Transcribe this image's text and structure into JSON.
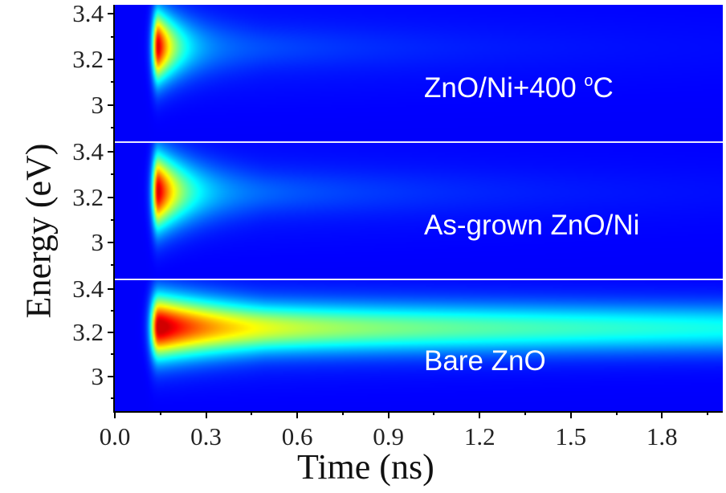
{
  "chart_data": {
    "type": "heatmap",
    "title": "",
    "xlabel": "Time (ns)",
    "ylabel": "Energy (eV)",
    "xlim": [
      0.0,
      2.0
    ],
    "ylim": [
      2.84,
      3.44
    ],
    "x_ticks": [
      "0.0",
      "0.3",
      "0.6",
      "0.9",
      "1.2",
      "1.5",
      "1.8"
    ],
    "x_tick_values": [
      0.0,
      0.3,
      0.6,
      0.9,
      1.2,
      1.5,
      1.8
    ],
    "y_ticks": [
      "3",
      "3.2",
      "3.4"
    ],
    "y_tick_values": [
      3.0,
      3.2,
      3.4
    ],
    "colormap": "jet",
    "panels": [
      {
        "label": "ZnO/Ni+400 ",
        "label_sup": "o",
        "label_unit": "C",
        "peak_energy": 3.26,
        "peak_time": 0.14,
        "fast_decay_ns": 0.06,
        "slow_decay_ns": 0.5,
        "slow_fraction": 0.12,
        "energy_width": 0.06
      },
      {
        "label": "As-grown ZnO/Ni",
        "label_sup": "",
        "label_unit": "",
        "peak_energy": 3.23,
        "peak_time": 0.14,
        "fast_decay_ns": 0.08,
        "slow_decay_ns": 0.6,
        "slow_fraction": 0.15,
        "energy_width": 0.065
      },
      {
        "label": "Bare ZnO",
        "label_sup": "",
        "label_unit": "",
        "peak_energy": 3.23,
        "peak_time": 0.14,
        "fast_decay_ns": 0.2,
        "slow_decay_ns": 4.0,
        "slow_fraction": 0.5,
        "energy_width": 0.075
      }
    ]
  }
}
